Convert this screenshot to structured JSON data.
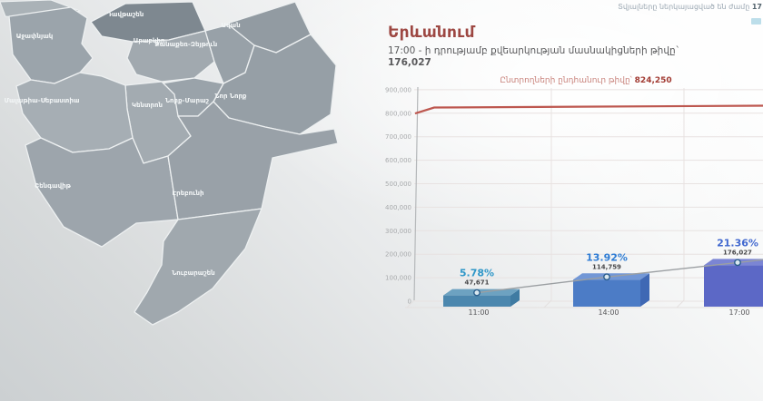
{
  "header": {
    "top_note": {
      "prefix": "Տվյալները ներկայացված են ժամը",
      "time": "17"
    },
    "title": "Երևանում",
    "subtitle": "17:00 - ի դրությամբ քվեարկության մասնակիցների թիվը`",
    "subtitle_value": "176,027"
  },
  "map": {
    "districts": [
      {
        "name": "Աջափնյակ"
      },
      {
        "name": "Դավթաշեն"
      },
      {
        "name": "Արաբկիր"
      },
      {
        "name": "Քանաքեռ-Զեյթուն"
      },
      {
        "name": "Ավան"
      },
      {
        "name": "Նոր Նորք"
      },
      {
        "name": "Նորք-Մարաշ"
      },
      {
        "name": "Կենտրոն"
      },
      {
        "name": "Մալաթիա-Սեբաստիա"
      },
      {
        "name": "Շենգավիթ"
      },
      {
        "name": "Էրեբունի"
      },
      {
        "name": "Նուբարաշեն"
      }
    ]
  },
  "chart_data": {
    "type": "bar",
    "title_label": "Ընտրողների ընդհանուր թիվը՝",
    "title_value": "824,250",
    "categories": [
      "11:00",
      "14:00",
      "17:00"
    ],
    "values": [
      47671,
      114759,
      176027
    ],
    "value_labels": [
      "47,671",
      "114,759",
      "176,027"
    ],
    "percent_labels": [
      "5.78%",
      "13.92%",
      "21.36%"
    ],
    "reference_line": {
      "value": 824250,
      "color": "#bd574f"
    },
    "y_ticks": [
      "900,000",
      "800,000",
      "700,000",
      "600,000",
      "500,000",
      "400,000",
      "300,000",
      "200,000",
      "100,000",
      "0"
    ],
    "ylim": [
      0,
      900000
    ],
    "grid": true,
    "bar_colors": [
      {
        "front": "#4c87ae",
        "top": "#6da2c1",
        "side": "#3f7ba2"
      },
      {
        "front": "#4c7cc6",
        "top": "#7297d6",
        "side": "#3f68b4"
      },
      {
        "front": "#5c68c6",
        "top": "#7b85d4",
        "side": "#4a55ae"
      }
    ],
    "percent_colors": [
      "#2e96c8",
      "#2e7cd4",
      "#4168cf"
    ],
    "trend_line_color": "#9b9fa2",
    "marker": {
      "fill": "#d9e7ef",
      "stroke": "#2a5e8c"
    }
  }
}
